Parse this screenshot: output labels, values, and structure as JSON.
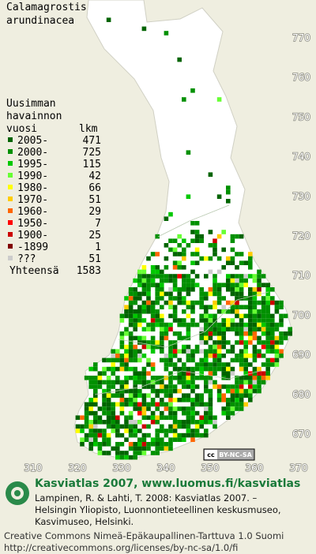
{
  "title": [
    "Calamagrostis",
    "arundinacea"
  ],
  "legend": {
    "header": [
      "Uusimman",
      "havainnon",
      "vuosi",
      "lkm"
    ],
    "rows": [
      {
        "label": "2005-",
        "count": "471",
        "color": "#006400"
      },
      {
        "label": "2000-",
        "count": "725",
        "color": "#009000"
      },
      {
        "label": "1995-",
        "count": "115",
        "color": "#00c800"
      },
      {
        "label": "1990-",
        "count": "42",
        "color": "#66ff33"
      },
      {
        "label": "1980-",
        "count": "66",
        "color": "#ffff00"
      },
      {
        "label": "1970-",
        "count": "51",
        "color": "#ffcc00"
      },
      {
        "label": "1960-",
        "count": "29",
        "color": "#ff6600"
      },
      {
        "label": "1950-",
        "count": "7",
        "color": "#ff0000"
      },
      {
        "label": "1900-",
        "count": "25",
        "color": "#cc0000"
      },
      {
        "label": "-1899",
        "count": "1",
        "color": "#800000"
      },
      {
        "label": "???",
        "count": "51",
        "color": "#cccccc"
      }
    ],
    "total_label": "Yhteensä",
    "total": "1583"
  },
  "xticks": [
    310,
    320,
    330,
    340,
    350,
    360,
    370
  ],
  "yticks": [
    670,
    680,
    690,
    700,
    710,
    720,
    730,
    740,
    750,
    760,
    770
  ],
  "badge": [
    "cc",
    "BY-NC-SA"
  ],
  "footer": {
    "heading": "Kasviatlas 2007, www.luomus.fi/kasviatlas",
    "citation": [
      "Lampinen, R. & Lahti, T. 2008: Kasviatlas 2007. –",
      "Helsingin Yliopisto, Luonnontieteellinen keskusmuseo,",
      "Kasvimuseo, Helsinki."
    ],
    "license": [
      "Creative Commons Nimeä-Epäkaupallinen-Tarttuva 1.0 Suomi",
      "http://creativecommons.org/licenses/by-nc-sa/1.0/fi"
    ]
  }
}
